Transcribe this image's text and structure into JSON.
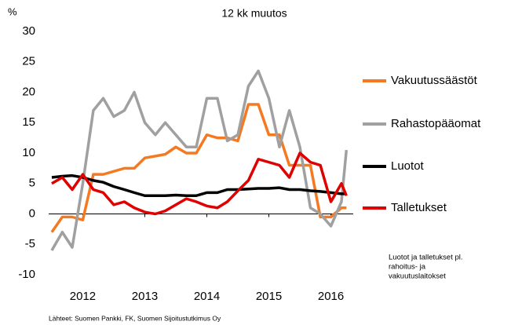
{
  "chart_data": {
    "type": "line",
    "subtitle": "12 kk muutos",
    "y_unit": "%",
    "x": [
      2011.5,
      2011.67,
      2011.83,
      2012,
      2012.17,
      2012.33,
      2012.5,
      2012.67,
      2012.83,
      2013,
      2013.17,
      2013.33,
      2013.5,
      2013.67,
      2013.83,
      2014,
      2014.17,
      2014.33,
      2014.5,
      2014.67,
      2014.83,
      2015,
      2015.17,
      2015.33,
      2015.5,
      2015.67,
      2015.83,
      2016,
      2016.17,
      2016.25
    ],
    "series": [
      {
        "name": "Vakuutussäästöt",
        "color": "#f47920",
        "values": [
          -3,
          -0.5,
          -0.5,
          -1,
          6.5,
          6.5,
          7,
          7.5,
          7.5,
          9.2,
          9.5,
          9.8,
          11,
          10,
          10,
          13,
          12.5,
          12.5,
          12,
          18,
          18,
          13,
          13,
          8,
          8,
          8,
          -0.5,
          -0.5,
          1,
          1
        ]
      },
      {
        "name": "Rahastopääomat",
        "color": "#a0a0a0",
        "values": [
          -6,
          -3,
          -5.5,
          5,
          17,
          19,
          16,
          17,
          20,
          15,
          13,
          15,
          13,
          11,
          11,
          19,
          19,
          12,
          13,
          21,
          23.5,
          19,
          11,
          17,
          11,
          1,
          0,
          -2,
          2,
          10.5
        ]
      },
      {
        "name": "Luotot",
        "color": "#000000",
        "values": [
          6,
          6.2,
          6.3,
          6,
          5.5,
          5.2,
          4.5,
          4,
          3.5,
          3,
          3,
          3,
          3.1,
          3,
          3,
          3.5,
          3.5,
          4,
          4,
          4.1,
          4.2,
          4.2,
          4.3,
          4,
          4,
          3.8,
          3.7,
          3.5,
          3.3,
          3.3
        ]
      },
      {
        "name": "Talletukset",
        "color": "#e00000",
        "values": [
          5,
          6,
          4,
          6.5,
          4,
          3.5,
          1.5,
          2,
          1,
          0.3,
          0,
          0.5,
          1.5,
          2.5,
          2,
          1.3,
          1,
          2,
          3.8,
          5.5,
          9,
          8.5,
          8,
          6,
          10,
          8.5,
          8,
          2,
          5,
          3
        ]
      }
    ],
    "xlim": [
      2011.45,
      2016.36
    ],
    "xticks": [
      2012,
      2013,
      2014,
      2015,
      2016
    ],
    "ylim": [
      -10,
      30
    ],
    "yticks": [
      -10,
      -5,
      0,
      5,
      10,
      15,
      20,
      25,
      30
    ],
    "note": [
      "Luotot ja talletukset pl.",
      "rahoitus- ja",
      "vakuutuslaitokset"
    ],
    "source": "Lähteet: Suomen Pankki, FK, Suomen Sijoitustutkimus Oy"
  }
}
